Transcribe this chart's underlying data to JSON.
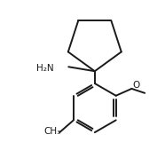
{
  "background_color": "#ffffff",
  "line_color": "#1a1a1a",
  "line_width": 1.4,
  "text_color": "#1a1a1a",
  "h2n_label": "H₂N",
  "o_label": "O",
  "figsize": [
    1.86,
    1.87
  ],
  "dpi": 100,
  "cyclo_r": 32,
  "benz_r": 28
}
